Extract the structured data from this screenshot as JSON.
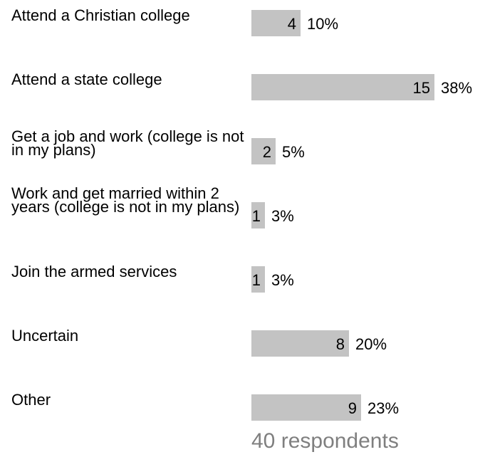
{
  "chart_data": {
    "type": "bar",
    "orientation": "horizontal",
    "categories": [
      "Attend a Christian college",
      "Attend a state college",
      "Get a job and work (college is not in my plans)",
      "Work and get married within 2 years (college is not in my plans)",
      "Join the armed services",
      "Uncertain",
      "Other"
    ],
    "values": [
      4,
      15,
      2,
      1,
      1,
      8,
      9
    ],
    "percent_labels": [
      "10%",
      "38%",
      "5%",
      "3%",
      "3%",
      "20%",
      "23%"
    ],
    "xlim": [
      0,
      15
    ],
    "grid": false,
    "legend": "none"
  },
  "footer": {
    "respondents": "40 respondents"
  },
  "colors": {
    "bar": "#c3c3c3",
    "text": "#000000",
    "footer_text": "#7f7f7f"
  }
}
